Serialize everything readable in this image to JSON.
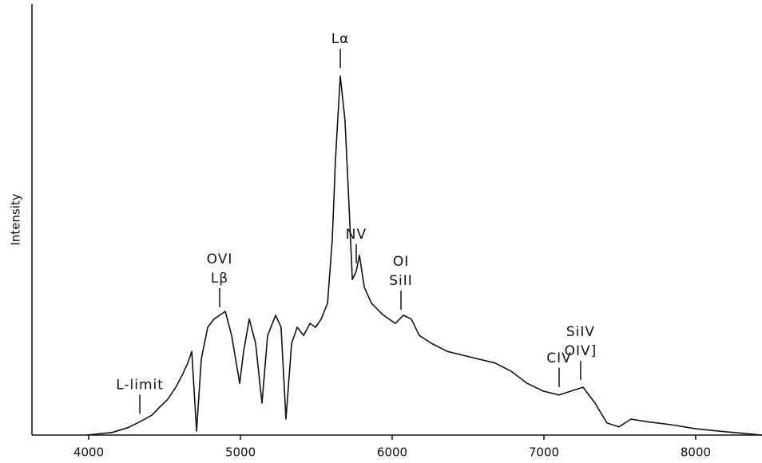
{
  "chart_data": {
    "type": "line",
    "y_label": "Intensity",
    "xlim": [
      3626,
      8437
    ],
    "ylim": [
      0,
      100
    ],
    "xticks": [
      4000,
      5000,
      6000,
      7000,
      8000
    ],
    "x": [
      3984,
      4153,
      4258,
      4337,
      4416,
      4468,
      4521,
      4574,
      4616,
      4653,
      4679,
      4711,
      4742,
      4784,
      4826,
      4863,
      4900,
      4942,
      4995,
      5021,
      5058,
      5100,
      5142,
      5179,
      5232,
      5268,
      5300,
      5337,
      5374,
      5416,
      5458,
      5495,
      5532,
      5574,
      5605,
      5626,
      5658,
      5689,
      5716,
      5737,
      5763,
      5784,
      5816,
      5863,
      5942,
      6021,
      6074,
      6126,
      6179,
      6258,
      6363,
      6468,
      6574,
      6679,
      6784,
      6889,
      6995,
      7100,
      7179,
      7258,
      7337,
      7416,
      7495,
      7574,
      7679,
      7837,
      7995,
      8153,
      8311,
      8437
    ],
    "series": [
      {
        "color": "#111111",
        "values": [
          0,
          0.6,
          1.7,
          3.1,
          4.6,
          6.5,
          8.3,
          11.1,
          13.9,
          16.7,
          19.4,
          0.9,
          17.6,
          25,
          26.9,
          27.8,
          28.7,
          23.1,
          12,
          19.4,
          26.9,
          21.3,
          7.4,
          23.1,
          27.8,
          25,
          3.7,
          21.3,
          25,
          23.1,
          25.9,
          25,
          26.9,
          30.6,
          45.4,
          63.9,
          83.3,
          73.1,
          52.8,
          36.1,
          38,
          41.7,
          34.3,
          30.6,
          27.8,
          25.9,
          27.8,
          26.9,
          23.1,
          21.3,
          19.4,
          18.5,
          17.6,
          16.7,
          14.8,
          12,
          10.2,
          9.3,
          10.2,
          11.1,
          7.4,
          2.8,
          1.9,
          3.7,
          3.1,
          2.4,
          1.5,
          0.9,
          0.4,
          0
        ]
      }
    ],
    "annotations": [
      {
        "x": 4337,
        "lines": [
          "L-limit"
        ]
      },
      {
        "x": 4863,
        "lines": [
          "OVI",
          "Lβ"
        ]
      },
      {
        "x": 5658,
        "lines": [
          "Lα"
        ]
      },
      {
        "x": 5763,
        "lines": [
          "NV"
        ]
      },
      {
        "x": 6058,
        "lines": [
          "OI",
          "SiII"
        ]
      },
      {
        "x": 7242,
        "lines": [
          "SiIV",
          "OIV]"
        ]
      },
      {
        "x": 7100,
        "lines": [
          "CIV"
        ]
      }
    ]
  }
}
